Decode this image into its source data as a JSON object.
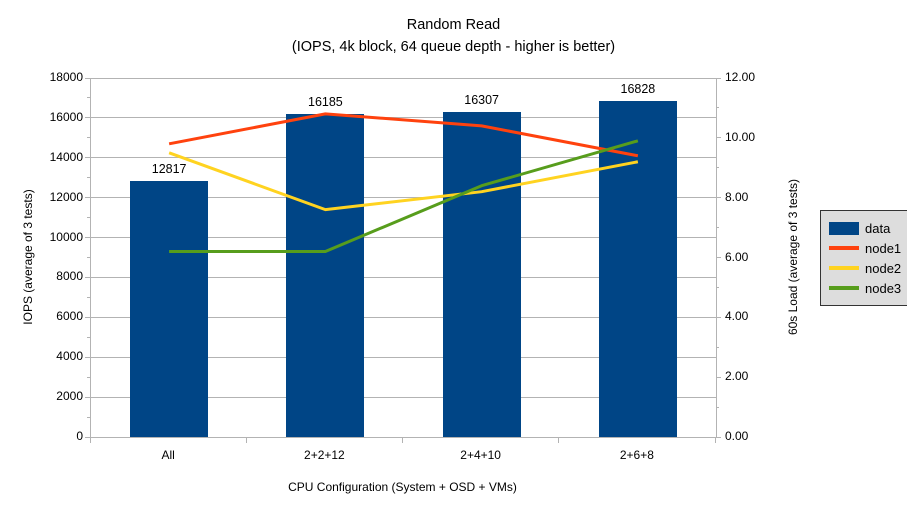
{
  "page": {
    "background": "#FFFFFF"
  },
  "chart_data": {
    "type": "bar",
    "title": "Random Read",
    "subtitle": "(IOPS, 4k block, 64 queue depth - higher is better)",
    "xlabel": "CPU Configuration (System + OSD + VMs)",
    "ylabel_left": "IOPS (average of 3 tests)",
    "ylabel_right": "60s Load (average of 3 tests)",
    "categories": [
      "All",
      "2+2+12",
      "2+4+10",
      "2+6+8"
    ],
    "series": [
      {
        "name": "data",
        "kind": "bar",
        "axis": "left",
        "color": "#004586",
        "values": [
          12817,
          16185,
          16307,
          16828
        ],
        "labels": [
          "12817",
          "16185",
          "16307",
          "16828"
        ]
      },
      {
        "name": "node1",
        "kind": "line",
        "axis": "right",
        "color": "#FF420E",
        "values": [
          9.8,
          10.8,
          10.4,
          9.4
        ]
      },
      {
        "name": "node2",
        "kind": "line",
        "axis": "right",
        "color": "#FFD320",
        "values": [
          9.5,
          7.6,
          8.2,
          9.2
        ]
      },
      {
        "name": "node3",
        "kind": "line",
        "axis": "right",
        "color": "#579D1C",
        "values": [
          6.2,
          6.2,
          8.4,
          9.9
        ]
      }
    ],
    "axis_left": {
      "min": 0,
      "max": 18000,
      "major_step": 2000,
      "minor_step": 1000,
      "tick_labels": [
        "0",
        "2000",
        "4000",
        "6000",
        "8000",
        "10000",
        "12000",
        "14000",
        "16000",
        "18000"
      ]
    },
    "axis_right": {
      "min": 0,
      "max": 12,
      "major_step": 2,
      "minor_step": 1,
      "tick_labels": [
        "0.00",
        "2.00",
        "4.00",
        "6.00",
        "8.00",
        "10.00",
        "12.00"
      ]
    },
    "grid": true,
    "legend": {
      "position": "right",
      "entries": [
        "data",
        "node1",
        "node2",
        "node3"
      ]
    },
    "colors": {
      "grid": "#B3B3B3",
      "axis": "#B3B3B3",
      "text": "#000000",
      "bar": "#004586",
      "node1": "#FF420E",
      "node2": "#FFD320",
      "node3": "#579D1C",
      "legend_bg": "#DDDDDD",
      "legend_border": "#333333"
    }
  }
}
